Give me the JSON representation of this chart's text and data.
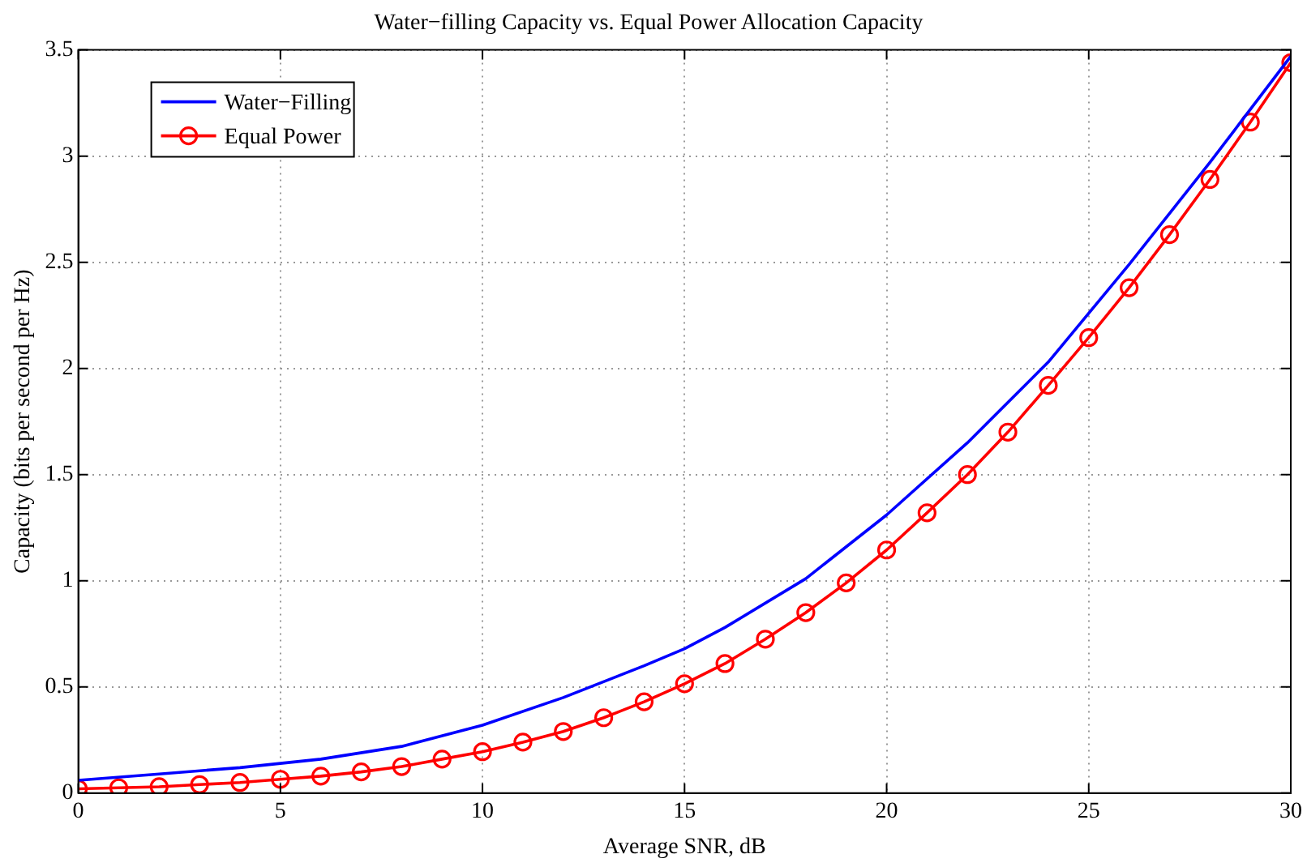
{
  "chart_data": {
    "type": "line",
    "title": "Water−filling Capacity vs. Equal Power Allocation Capacity",
    "xlabel": "Average SNR, dB",
    "ylabel": "Capacity (bits per second per Hz)",
    "xlim": [
      0,
      30
    ],
    "xticks": [
      0,
      5,
      10,
      15,
      20,
      25,
      30
    ],
    "ylim": [
      0,
      3.5
    ],
    "yticks": [
      0,
      0.5,
      1,
      1.5,
      2,
      2.5,
      3,
      3.5
    ],
    "grid": true,
    "legend": "top left",
    "series": [
      {
        "name": "Water−Filling",
        "color": "#0000ff",
        "marker": "none",
        "x": [
          0,
          2,
          4,
          6,
          8,
          10,
          12,
          14,
          15,
          16,
          18,
          20,
          22,
          24,
          26,
          28,
          30
        ],
        "values": [
          0.06,
          0.09,
          0.12,
          0.16,
          0.22,
          0.32,
          0.45,
          0.6,
          0.68,
          0.78,
          1.01,
          1.31,
          1.65,
          2.03,
          2.49,
          2.97,
          3.47
        ]
      },
      {
        "name": "Equal Power",
        "color": "#ff0000",
        "marker": "circle",
        "x": [
          0,
          1,
          2,
          3,
          4,
          5,
          6,
          7,
          8,
          9,
          10,
          11,
          12,
          13,
          14,
          15,
          16,
          17,
          18,
          19,
          20,
          21,
          22,
          23,
          24,
          25,
          26,
          27,
          28,
          29,
          30
        ],
        "values": [
          0.02,
          0.025,
          0.03,
          0.04,
          0.05,
          0.065,
          0.08,
          0.1,
          0.125,
          0.16,
          0.195,
          0.24,
          0.29,
          0.355,
          0.43,
          0.515,
          0.61,
          0.725,
          0.85,
          0.99,
          1.145,
          1.32,
          1.5,
          1.7,
          1.92,
          2.145,
          2.38,
          2.63,
          2.89,
          3.16,
          3.44
        ]
      }
    ]
  }
}
